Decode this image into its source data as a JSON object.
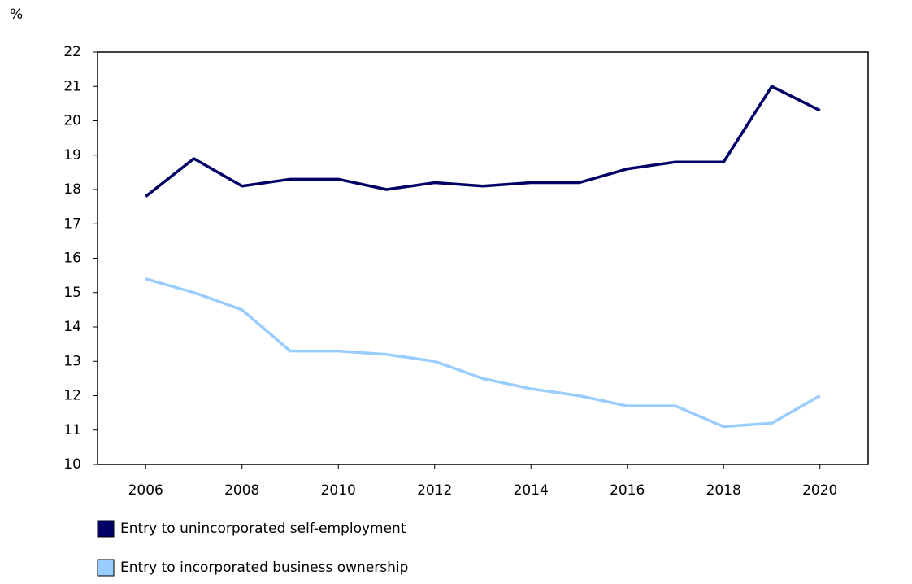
{
  "chart_data": {
    "type": "line",
    "y_label": "%",
    "x": [
      2006,
      2007,
      2008,
      2009,
      2010,
      2011,
      2012,
      2013,
      2014,
      2015,
      2016,
      2017,
      2018,
      2019,
      2020
    ],
    "series": [
      {
        "name": "Entry to unincorporated self-employment",
        "color": "#000066",
        "values": [
          17.8,
          18.9,
          18.1,
          18.3,
          18.3,
          18.0,
          18.2,
          18.1,
          18.2,
          18.2,
          18.6,
          18.8,
          18.8,
          21.0,
          20.3
        ]
      },
      {
        "name": "Entry to incorporated business ownership",
        "color": "#99ccff",
        "values": [
          15.4,
          15.0,
          14.5,
          13.3,
          13.3,
          13.2,
          13.0,
          12.5,
          12.2,
          12.0,
          11.7,
          11.7,
          11.1,
          11.2,
          12.0
        ]
      }
    ],
    "xlim": [
      2005,
      2021
    ],
    "xticks": [
      2006,
      2008,
      2010,
      2012,
      2014,
      2016,
      2018,
      2020
    ],
    "ylim": [
      10,
      22
    ],
    "yticks": [
      10,
      11,
      12,
      13,
      14,
      15,
      16,
      17,
      18,
      19,
      20,
      21,
      22
    ]
  }
}
